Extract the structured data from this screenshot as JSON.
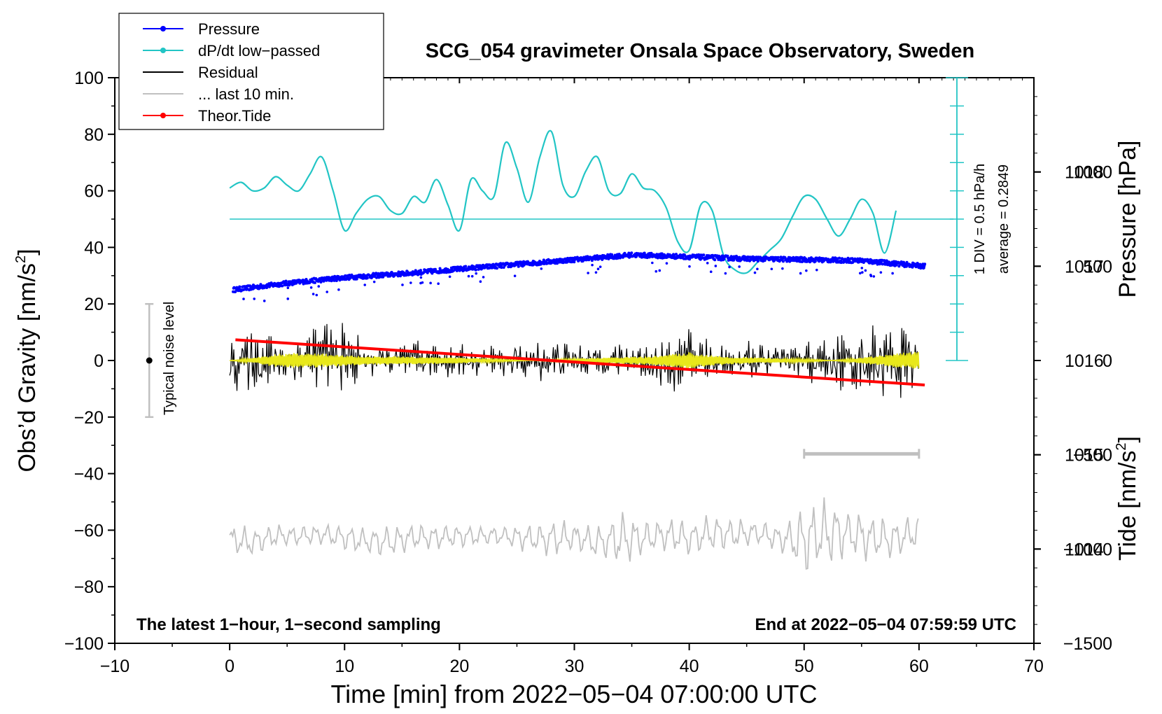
{
  "chart_data": {
    "type": "line",
    "title": "SCG_054 gravimeter Onsala Space Observatory, Sweden",
    "xlabel": "Time [min] from 2022−05−04 07:00:00 UTC",
    "ylabel_left_main": "Obs’d Gravity [nm/s",
    "ylabel_left_sup": "2",
    "ylabel_left_end": "]",
    "ylabel_right_pressure": "Pressure [hPa]",
    "ylabel_right_tide_main": "Tide [nm/s",
    "ylabel_right_tide_sup": "2",
    "ylabel_right_tide_end": "]",
    "xlim": [
      -10,
      70
    ],
    "ylim": [
      -100,
      100
    ],
    "pressure_ylim": [
      1013,
      1019
    ],
    "tide_ylim": [
      -1500,
      1500
    ],
    "x_ticks": [
      -10,
      0,
      10,
      20,
      30,
      40,
      50,
      60,
      70
    ],
    "x_tick_labels": [
      "−10",
      "0",
      "10",
      "20",
      "30",
      "40",
      "50",
      "60",
      "70"
    ],
    "y_ticks": [
      -100,
      -80,
      -60,
      -40,
      -20,
      0,
      20,
      40,
      60,
      80,
      100
    ],
    "y_tick_labels": [
      "−100",
      "−80",
      "−60",
      "−40",
      "−20",
      "0",
      "20",
      "40",
      "60",
      "80",
      "100"
    ],
    "pressure_ticks": [
      1014,
      1015,
      1016,
      1017,
      1018
    ],
    "pressure_tick_labels": [
      "1014",
      "1015",
      "1016",
      "1017",
      "1018"
    ],
    "tide_ticks": [
      -1500,
      -1000,
      -500,
      0,
      500,
      1000
    ],
    "tide_tick_labels": [
      "−1500",
      "−1000",
      "−500",
      "0",
      "500",
      "1000"
    ],
    "legend_position": "top-left",
    "legend": [
      {
        "label": "Pressure",
        "color": "#0000ff",
        "marker": true
      },
      {
        "label": "dP/dt low−passed",
        "color": "#22c5c5",
        "marker": true
      },
      {
        "label": "Residual",
        "color": "#000000",
        "marker": false
      },
      {
        "label": "... last 10 min.",
        "color": "#c0c0c0",
        "marker": false
      },
      {
        "label": "Theor.Tide",
        "color": "#ff0000",
        "marker": true
      }
    ],
    "annotations": {
      "bottom_left": "The latest 1−hour, 1−second sampling",
      "bottom_right": "End at 2022−05−04 07:59:59 UTC",
      "noise_label": "Typical noise level",
      "dpdt_scale": "1 DIV = 0.5 hPa/h",
      "dpdt_average": "average = 0.2849"
    },
    "noise_bar": {
      "x": -7,
      "y_low": -20,
      "y_high": 20,
      "center": 0
    },
    "last10_bar": {
      "x_start": 50,
      "x_end": 60,
      "y": -33
    },
    "series": [
      {
        "name": "Pressure",
        "color": "#0000ff",
        "axis": "pressure_hPa",
        "x": [
          0.3,
          5,
          10,
          15,
          20,
          25,
          30,
          35,
          40,
          45,
          50,
          55,
          60.5
        ],
        "values": [
          1016.75,
          1016.82,
          1016.88,
          1016.92,
          1016.97,
          1017.02,
          1017.07,
          1017.12,
          1017.1,
          1017.08,
          1017.07,
          1017.06,
          1017.0
        ]
      },
      {
        "name": "dP/dt low-passed",
        "color": "#22c5c5",
        "axis": "gravity",
        "x": [
          0,
          1,
          2,
          3,
          4,
          5,
          6,
          7,
          8,
          9,
          10,
          11,
          12,
          13,
          14,
          15,
          16,
          17,
          18,
          19,
          20,
          21,
          22,
          23,
          24,
          25,
          26,
          27,
          28,
          29,
          30,
          31,
          32,
          33,
          34,
          35,
          36,
          37,
          38,
          39,
          40,
          41,
          42,
          43,
          44,
          45,
          46,
          47,
          48,
          49,
          50,
          51,
          52,
          53,
          54,
          55,
          56,
          57,
          58
        ],
        "values": [
          61,
          63,
          60,
          61,
          65,
          62,
          60,
          66,
          72,
          60,
          46,
          52,
          57,
          58,
          53,
          52,
          58,
          56,
          64,
          55,
          46,
          64,
          60,
          58,
          77,
          68,
          56,
          72,
          81,
          62,
          58,
          67,
          72,
          60,
          59,
          66,
          61,
          60,
          54,
          42,
          39,
          55,
          53,
          37,
          32,
          31,
          35,
          39,
          43,
          51,
          58,
          57,
          50,
          44,
          50,
          57,
          52,
          38,
          53
        ],
        "baseline": 50,
        "scale_note": "1 DIV = 0.5 hPa/h"
      },
      {
        "name": "Residual",
        "color": "#000000",
        "axis": "gravity",
        "x": [
          0,
          2,
          4,
          6,
          8,
          10,
          12,
          14,
          16,
          18,
          20,
          22,
          24,
          26,
          28,
          30,
          32,
          34,
          36,
          38,
          40,
          42,
          44,
          46,
          48,
          50,
          52,
          54,
          56,
          58,
          60
        ],
        "values_max": [
          8,
          12,
          9,
          11,
          14,
          12,
          6,
          5,
          7,
          5,
          6,
          5,
          7,
          5,
          8,
          6,
          5,
          7,
          6,
          8,
          11,
          7,
          6,
          7,
          6,
          7,
          8,
          10,
          12,
          14,
          9
        ],
        "values_min": [
          -10,
          -12,
          -9,
          -11,
          -10,
          -11,
          -6,
          -5,
          -7,
          -5,
          -6,
          -5,
          -7,
          -6,
          -8,
          -6,
          -5,
          -7,
          -6,
          -12,
          -10,
          -7,
          -6,
          -7,
          -6,
          -8,
          -9,
          -11,
          -12,
          -15,
          -9
        ]
      },
      {
        "name": "Residual band (yellow)",
        "color": "#e8e81a",
        "axis": "gravity",
        "amplitude_envelope": [
          3,
          4,
          5,
          4,
          3,
          2,
          1.5,
          1.5,
          1.5,
          1.5,
          1.5,
          1.5,
          1.5,
          1.5,
          1.5,
          1.5,
          1.5,
          1.5,
          1.5,
          2,
          3,
          2,
          1.5,
          1.5,
          1.5,
          2,
          2.5,
          3,
          3.5,
          4,
          4
        ]
      },
      {
        "name": "... last 10 min.",
        "color": "#c0c0c0",
        "axis": "gravity",
        "x": [
          0,
          2,
          4,
          6,
          8,
          10,
          12,
          14,
          16,
          18,
          20,
          22,
          24,
          26,
          28,
          30,
          32,
          34,
          36,
          38,
          40,
          42,
          44,
          46,
          48,
          50,
          52,
          54,
          56,
          58,
          60
        ],
        "values_max": [
          -57,
          -58,
          -57,
          -58,
          -57,
          -57,
          -58,
          -58,
          -57,
          -57,
          -57,
          -58,
          -58,
          -57,
          -56,
          -56,
          -58,
          -51,
          -56,
          -55,
          -56,
          -53,
          -55,
          -56,
          -57,
          -49,
          -47,
          -51,
          -53,
          -55,
          -53
        ],
        "values_min": [
          -70,
          -71,
          -67,
          -66,
          -66,
          -68,
          -70,
          -70,
          -68,
          -68,
          -67,
          -66,
          -66,
          -69,
          -70,
          -69,
          -71,
          -75,
          -70,
          -68,
          -70,
          -69,
          -68,
          -66,
          -69,
          -78,
          -75,
          -71,
          -73,
          -71,
          -68
        ]
      },
      {
        "name": "Theor.Tide",
        "color": "#ff0000",
        "axis": "tide_nm_s2",
        "x": [
          0.5,
          60.5
        ],
        "values": [
          110,
          -130
        ]
      }
    ]
  }
}
